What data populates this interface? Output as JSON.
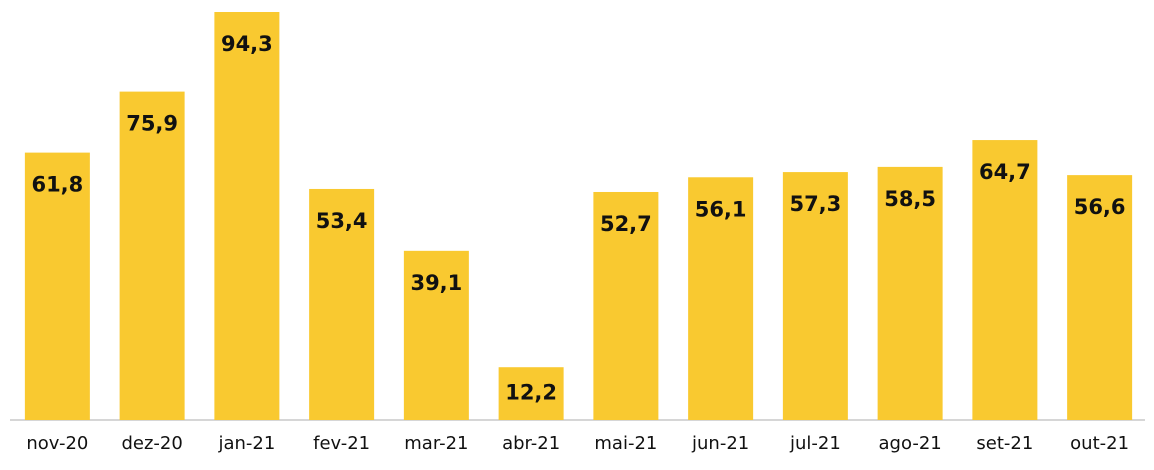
{
  "chart_data": {
    "type": "bar",
    "categories": [
      "nov-20",
      "dez-20",
      "jan-21",
      "fev-21",
      "mar-21",
      "abr-21",
      "mai-21",
      "jun-21",
      "jul-21",
      "ago-21",
      "set-21",
      "out-21"
    ],
    "values": [
      61.8,
      75.9,
      94.3,
      53.4,
      39.1,
      12.2,
      52.7,
      56.1,
      57.3,
      58.5,
      64.7,
      56.6
    ],
    "value_labels": [
      "61,8",
      "75,9",
      "94,3",
      "53,4",
      "39,1",
      "12,2",
      "52,7",
      "56,1",
      "57,3",
      "58,5",
      "64,7",
      "56,6"
    ],
    "color": "#f9c930"
  }
}
